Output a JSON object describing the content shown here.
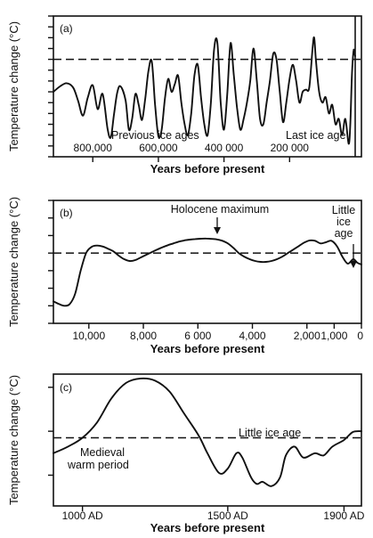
{
  "figure_title": "",
  "chart_data": [
    {
      "type": "line",
      "panel": "(a)",
      "ylabel": "Temperature change (°C)",
      "xlabel": "Years before present",
      "x_axis_reversed": true,
      "xlim": [
        920000,
        0
      ],
      "ylim": [
        -9,
        4
      ],
      "x_ticks": [
        800000,
        600000,
        400000,
        200000
      ],
      "x_tick_labels": [
        "800,000",
        "600,000",
        "400 000",
        "200 000"
      ],
      "y_ticks": [
        -9,
        -8,
        -7,
        -6,
        -5,
        -4,
        -3,
        -2,
        -1,
        0,
        1,
        2,
        3,
        4
      ],
      "reference_line": 0,
      "annotations": [
        "Previous ice ages",
        "Last ice age"
      ],
      "series": [
        {
          "x": [
            920000,
            900000,
            880000,
            860000,
            845000,
            830000,
            815000,
            800000,
            785000,
            770000,
            755000,
            745000,
            735000,
            725000,
            715000,
            700000,
            690000,
            680000,
            670000,
            660000,
            650000,
            640000,
            630000,
            620000,
            610000,
            600000,
            590000,
            580000,
            570000,
            560000,
            550000,
            540000,
            530000,
            520000,
            510000,
            500000,
            490000,
            480000,
            470000,
            460000,
            450000,
            440000,
            430000,
            420000,
            410000,
            400000,
            390000,
            380000,
            370000,
            360000,
            350000,
            340000,
            330000,
            320000,
            310000,
            300000,
            290000,
            280000,
            270000,
            260000,
            250000,
            240000,
            230000,
            220000,
            210000,
            200000,
            190000,
            180000,
            170000,
            160000,
            150000,
            140000,
            130000,
            125000,
            120000,
            110000,
            100000,
            90000,
            80000,
            70000,
            60000,
            50000,
            40000,
            30000,
            20000,
            15000,
            10000,
            5000,
            2000,
            0
          ],
          "y": [
            -3,
            -2.5,
            -2.2,
            -2.6,
            -3.8,
            -5.2,
            -3.5,
            -2.4,
            -4.6,
            -3.2,
            -6.4,
            -7.2,
            -5,
            -3,
            -2.5,
            -3.8,
            -6.5,
            -5.5,
            -3.2,
            -4.2,
            -5.6,
            -3.6,
            -1,
            -0.2,
            -4.2,
            -7.1,
            -6.5,
            -3.6,
            -1.8,
            -3,
            -2.3,
            -1.5,
            -4,
            -6,
            -7,
            -5,
            -1.5,
            -0.5,
            -3.5,
            -6,
            -7,
            -4,
            1,
            1.5,
            -4,
            -6.5,
            -3.2,
            1.5,
            -1.5,
            -4.5,
            -6.5,
            -5.5,
            -4,
            -2,
            1,
            -2,
            -5.5,
            -6,
            -4,
            -2,
            0.5,
            0,
            -3,
            -5.8,
            -4,
            -1.8,
            -0.5,
            -2,
            -4,
            -3,
            -2.8,
            -2.6,
            1,
            2,
            0,
            -3,
            -4,
            -3.5,
            -5,
            -4.2,
            -6,
            -5.5,
            -7,
            -5.5,
            -7.8,
            -6,
            -1.5,
            0.8,
            0.5,
            0.3
          ]
        }
      ]
    },
    {
      "type": "line",
      "panel": "(b)",
      "ylabel": "Temperature change (°C)",
      "xlabel": "Years before present",
      "x_axis_reversed": true,
      "xlim": [
        11300,
        0
      ],
      "ylim": [
        -4,
        3
      ],
      "x_ticks": [
        10000,
        8000,
        6000,
        4000,
        2000,
        1000,
        0
      ],
      "x_tick_labels": [
        "10,000",
        "8,000",
        "6 000",
        "4,000",
        "2,000",
        "1,000",
        "0"
      ],
      "y_ticks": [
        -4,
        -3,
        -2,
        -1,
        0,
        1,
        2,
        3
      ],
      "reference_line": 0,
      "annotations": [
        "Holocene maximum",
        "Little ice age"
      ],
      "series": [
        {
          "x": [
            11300,
            11100,
            10900,
            10700,
            10500,
            10300,
            10100,
            9900,
            9700,
            9500,
            9300,
            9100,
            8900,
            8700,
            8500,
            8300,
            8100,
            7900,
            7700,
            7500,
            7300,
            7100,
            6900,
            6700,
            6500,
            6300,
            6100,
            5900,
            5700,
            5500,
            5300,
            5100,
            4900,
            4700,
            4500,
            4300,
            4100,
            3900,
            3700,
            3500,
            3300,
            3100,
            2900,
            2700,
            2500,
            2300,
            2100,
            1900,
            1700,
            1500,
            1300,
            1100,
            900,
            700,
            500,
            300,
            150,
            0
          ],
          "y": [
            -2.75,
            -2.9,
            -3.0,
            -2.9,
            -2.3,
            -1.0,
            0,
            0.35,
            0.43,
            0.38,
            0.25,
            0.1,
            -0.15,
            -0.35,
            -0.45,
            -0.4,
            -0.25,
            -0.1,
            0.05,
            0.2,
            0.33,
            0.45,
            0.55,
            0.65,
            0.72,
            0.77,
            0.8,
            0.82,
            0.83,
            0.81,
            0.78,
            0.7,
            0.55,
            0.3,
            0,
            -0.2,
            -0.35,
            -0.45,
            -0.5,
            -0.5,
            -0.45,
            -0.35,
            -0.2,
            0,
            0.2,
            0.4,
            0.6,
            0.72,
            0.7,
            0.55,
            0.62,
            0.7,
            0.4,
            -0.2,
            -0.6,
            -0.35,
            -0.55,
            -0.65
          ]
        }
      ]
    },
    {
      "type": "line",
      "panel": "(c)",
      "ylabel": "Temperature change (°C)",
      "xlabel": "Years before present",
      "xlim": [
        900,
        1960
      ],
      "ylim": [
        -1.7,
        1.3
      ],
      "x_ticks": [
        1000,
        1500,
        1900
      ],
      "x_tick_labels": [
        "1000 AD",
        "1500 AD",
        "1900 AD"
      ],
      "y_ticks": [
        -1,
        0,
        1
      ],
      "reference_line": -0.15,
      "annotations": [
        "Little ice age",
        "Medieval warm period"
      ],
      "series": [
        {
          "x": [
            900,
            950,
            1000,
            1050,
            1100,
            1150,
            1200,
            1250,
            1300,
            1350,
            1400,
            1430,
            1470,
            1500,
            1530,
            1550,
            1580,
            1600,
            1620,
            1650,
            1680,
            1700,
            1730,
            1760,
            1800,
            1830,
            1860,
            1900,
            1930,
            1960
          ],
          "y": [
            -0.5,
            -0.35,
            -0.15,
            0.2,
            0.75,
            1.1,
            1.2,
            1.15,
            0.9,
            0.4,
            -0.1,
            -0.5,
            -0.95,
            -0.85,
            -0.5,
            -0.6,
            -1.05,
            -1.2,
            -1.15,
            -1.25,
            -1.05,
            -0.55,
            -0.35,
            -0.6,
            -0.5,
            -0.55,
            -0.35,
            -0.2,
            -0.02,
            0
          ]
        }
      ]
    }
  ]
}
